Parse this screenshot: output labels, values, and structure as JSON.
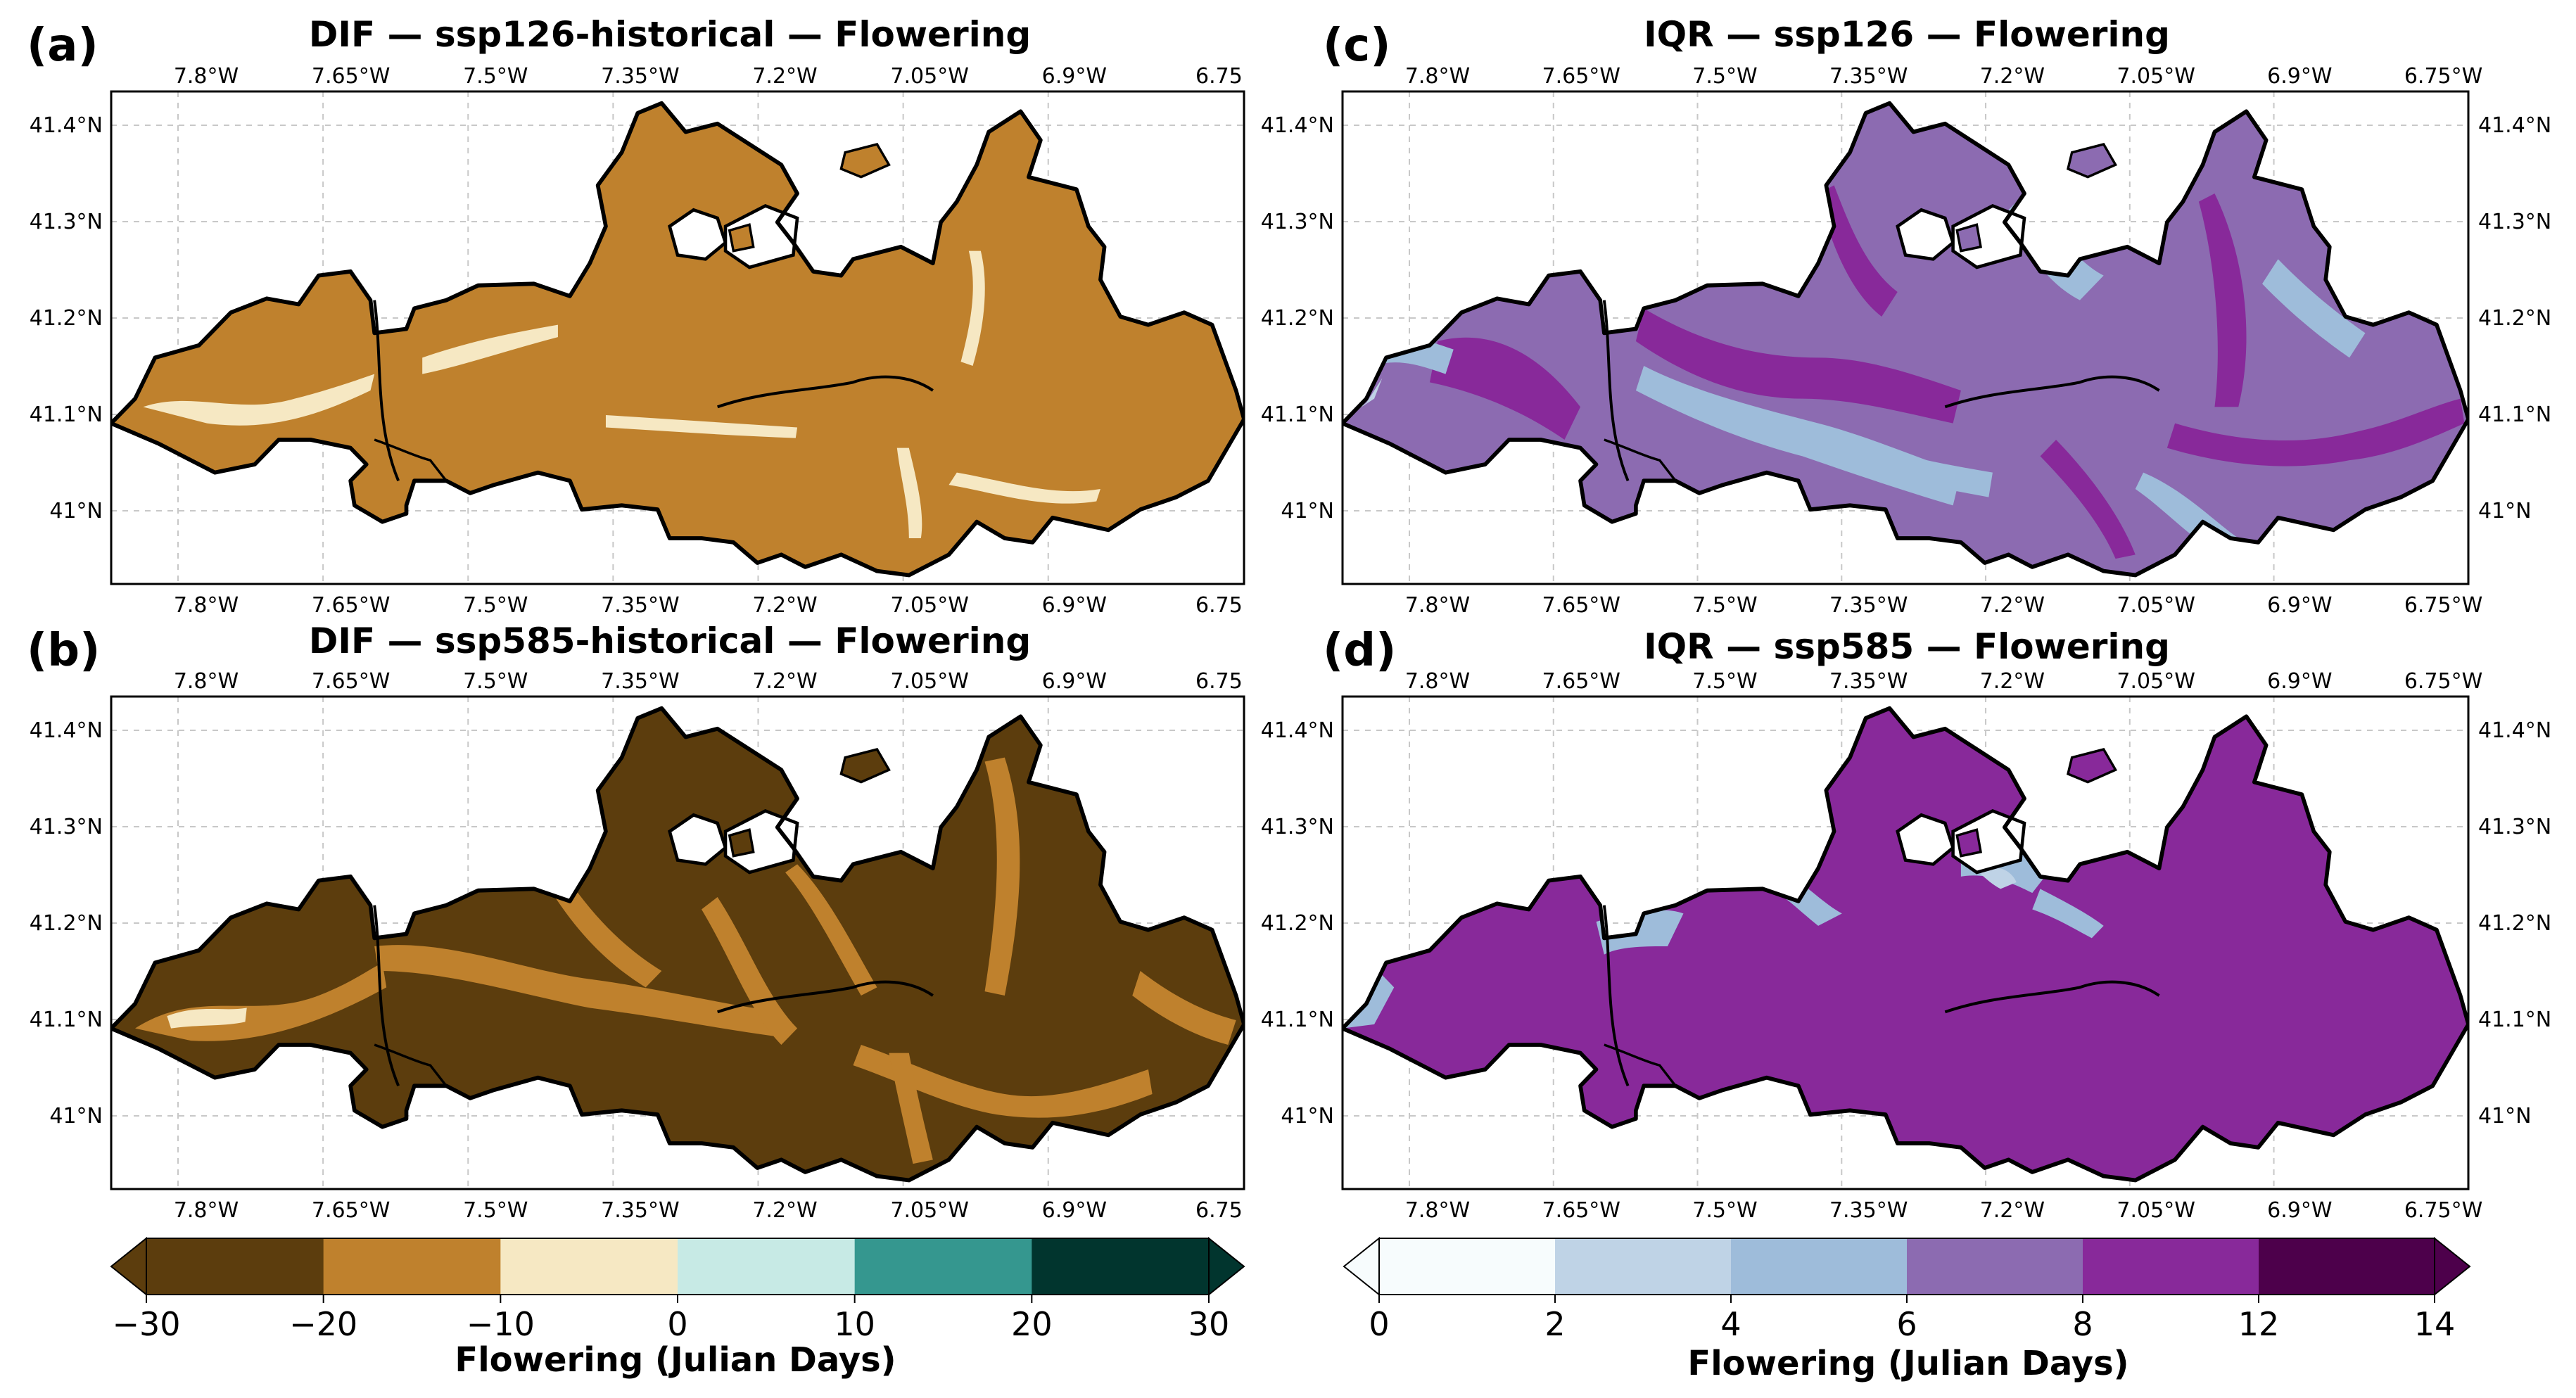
{
  "panels": [
    {
      "letter": "(a)",
      "title": "DIF — ssp126-historical — Flowering",
      "kind": "dif",
      "scenario": "ssp126"
    },
    {
      "letter": "(b)",
      "title": "DIF — ssp585-historical — Flowering",
      "kind": "dif",
      "scenario": "ssp585"
    },
    {
      "letter": "(c)",
      "title": "IQR — ssp126 — Flowering",
      "kind": "iqr",
      "scenario": "ssp126"
    },
    {
      "letter": "(d)",
      "title": "IQR — ssp585 — Flowering",
      "kind": "iqr",
      "scenario": "ssp585"
    }
  ],
  "axes": {
    "lon_ticks_left": [
      "7.8°W",
      "7.65°W",
      "7.5°W",
      "7.35°W",
      "7.2°W",
      "7.05°W",
      "6.9°W",
      "6.75"
    ],
    "lon_ticks_right": [
      "7.8°W",
      "7.65°W",
      "7.5°W",
      "7.35°W",
      "7.2°W",
      "7.05°W",
      "6.9°W",
      "6.75°W"
    ],
    "lat_ticks": [
      "41.4°N",
      "41.3°N",
      "41.2°N",
      "41.1°N",
      "41°N"
    ]
  },
  "colorbars": {
    "dif": {
      "label": "Flowering (Julian Days)",
      "ticks": [
        "−30",
        "−20",
        "−10",
        "0",
        "10",
        "20",
        "30"
      ],
      "colors": [
        "#5c3d0d",
        "#bf812d",
        "#f6e8c3",
        "#c7eae5",
        "#35978f",
        "#01352e"
      ]
    },
    "iqr": {
      "label": "Flowering (Julian Days)",
      "ticks": [
        "0",
        "2",
        "4",
        "6",
        "8",
        "12",
        "14"
      ],
      "colors": [
        "#f7fcfd",
        "#bfd3e6",
        "#9ebcda",
        "#8c6bb1",
        "#88299a",
        "#4d004b"
      ]
    }
  },
  "map_colors": {
    "dif_ssp126": {
      "base": "#bf812d",
      "accent": "#f6e8c3"
    },
    "dif_ssp585": {
      "base": "#5c3d0d",
      "accent": "#bf812d",
      "accent2": "#f6e8c3"
    },
    "iqr_ssp126": {
      "base": "#8c6bb1",
      "accent": "#88299a",
      "accent2": "#9ebcda",
      "accent3": "#bfd3e6"
    },
    "iqr_ssp585": {
      "base": "#88299a",
      "accent": "#9ebcda",
      "accent2": "#bfd3e6",
      "accent3": "#8c6bb1"
    }
  }
}
